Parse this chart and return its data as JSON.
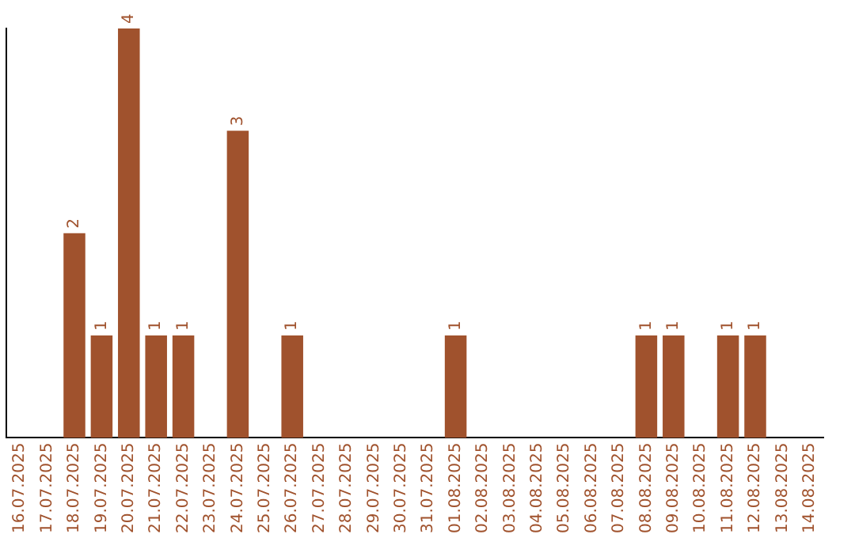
{
  "chart_data": {
    "type": "bar",
    "categories": [
      "16.07.2025",
      "17.07.2025",
      "18.07.2025",
      "19.07.2025",
      "20.07.2025",
      "21.07.2025",
      "22.07.2025",
      "23.07.2025",
      "24.07.2025",
      "25.07.2025",
      "26.07.2025",
      "27.07.2025",
      "28.07.2025",
      "29.07.2025",
      "30.07.2025",
      "31.07.2025",
      "01.08.2025",
      "02.08.2025",
      "03.08.2025",
      "04.08.2025",
      "05.08.2025",
      "06.08.2025",
      "07.08.2025",
      "08.08.2025",
      "09.08.2025",
      "10.08.2025",
      "11.08.2025",
      "12.08.2025",
      "13.08.2025",
      "14.08.2025"
    ],
    "values": [
      0,
      0,
      2,
      1,
      4,
      1,
      1,
      0,
      3,
      0,
      1,
      0,
      0,
      0,
      0,
      0,
      1,
      0,
      0,
      0,
      0,
      0,
      0,
      1,
      1,
      0,
      1,
      1,
      0,
      0
    ],
    "value_labels": [
      null,
      null,
      "2",
      "1",
      "4",
      "1",
      "1",
      null,
      "3",
      null,
      "1",
      null,
      null,
      null,
      null,
      null,
      "1",
      null,
      null,
      null,
      null,
      null,
      null,
      "1",
      "1",
      null,
      "1",
      "1",
      null,
      null
    ],
    "color": "#a0522d",
    "grid": false,
    "legend": false,
    "tick_labels": "x"
  }
}
